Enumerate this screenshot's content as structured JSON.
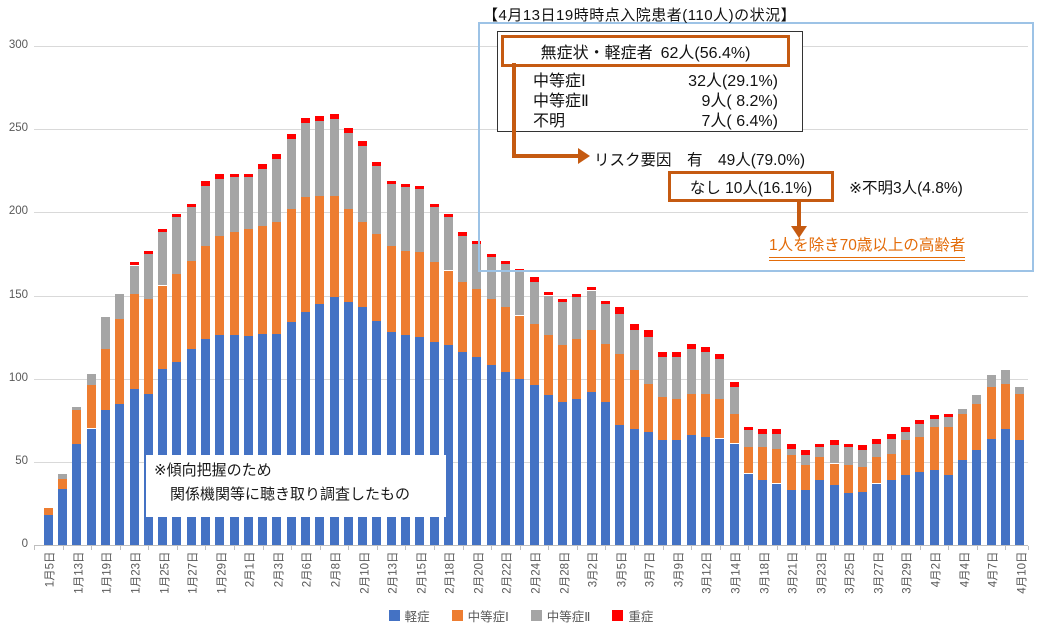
{
  "title": "【4月13日19時時点入院患者(110人)の状況】",
  "note": {
    "line1": "※傾向把握のため",
    "line2": "関係機関等に聴き取り調査したもの"
  },
  "annotation": {
    "row1_label": "無症状・軽症者",
    "row1_value": "62人(56.4%)",
    "rows": [
      {
        "label": "中等症Ⅰ",
        "value": "32人(29.1%)"
      },
      {
        "label": "中等症Ⅱ",
        "value": "9人( 8.2%)"
      },
      {
        "label": "不明",
        "value": "7人( 6.4%)"
      }
    ],
    "risk_line": "リスク要因　有　49人(79.0%)",
    "risk_none": "なし 10人(16.1%)",
    "risk_unknown": "※不明3人(4.8%)",
    "elderly_note": "1人を除き70歳以上の高齢者",
    "accent_color": "#c55a11",
    "elderly_color": "#e36c0a",
    "outer_border_color": "#9dc3e6"
  },
  "legend": [
    {
      "label": "軽症",
      "color": "#4472C4"
    },
    {
      "label": "中等症Ⅰ",
      "color": "#ED7D31"
    },
    {
      "label": "中等症Ⅱ",
      "color": "#A5A5A5"
    },
    {
      "label": "重症",
      "color": "#FF0000"
    }
  ],
  "chart_data": {
    "type": "bar",
    "stacked": true,
    "title": "【4月13日19時時点入院患者(110人)の状況】",
    "xlabel": "",
    "ylabel": "",
    "ylim": [
      0,
      300
    ],
    "y_ticks": [
      0,
      50,
      100,
      150,
      200,
      250,
      300
    ],
    "grid": true,
    "legend_position": "bottom",
    "x_tick_labels": [
      "1月5日",
      "1月13日",
      "1月19日",
      "1月23日",
      "1月25日",
      "1月27日",
      "1月29日",
      "2月1日",
      "2月3日",
      "2月6日",
      "2月8日",
      "2月10日",
      "2月13日",
      "2月15日",
      "2月18日",
      "2月20日",
      "2月22日",
      "2月24日",
      "2月28日",
      "3月2日",
      "3月5日",
      "3月7日",
      "3月9日",
      "3月12日",
      "3月14日",
      "3月18日",
      "3月21日",
      "3月23日",
      "3月25日",
      "3月27日",
      "3月29日",
      "4月2日",
      "4月4日",
      "4月7日",
      "4月10日"
    ],
    "x_tick_every_other_bar": true,
    "n_bars": 69,
    "series": [
      {
        "name": "軽症",
        "color": "#4472C4",
        "values": [
          18,
          34,
          61,
          70,
          81,
          85,
          94,
          91,
          106,
          110,
          118,
          124,
          126,
          126,
          126,
          127,
          127,
          134,
          140,
          145,
          149,
          146,
          143,
          135,
          128,
          126,
          125,
          122,
          120,
          116,
          113,
          108,
          104,
          100,
          96,
          90,
          86,
          88,
          92,
          86,
          72,
          70,
          68,
          63,
          63,
          66,
          65,
          64,
          61,
          43,
          39,
          37,
          33,
          33,
          39,
          36,
          31,
          32,
          37,
          39,
          42,
          44,
          45,
          42,
          51,
          57,
          64,
          70,
          63
        ]
      },
      {
        "name": "中等症Ⅰ",
        "color": "#ED7D31",
        "values": [
          4,
          6,
          20,
          26,
          37,
          51,
          57,
          57,
          50,
          53,
          53,
          56,
          60,
          62,
          64,
          65,
          67,
          68,
          69,
          65,
          61,
          56,
          51,
          52,
          52,
          51,
          51,
          48,
          45,
          42,
          41,
          40,
          39,
          38,
          37,
          36,
          34,
          36,
          37,
          35,
          43,
          35,
          29,
          26,
          25,
          25,
          26,
          24,
          18,
          16,
          20,
          21,
          21,
          15,
          14,
          13,
          17,
          15,
          16,
          16,
          21,
          21,
          26,
          29,
          28,
          28,
          31,
          27,
          28
        ]
      },
      {
        "name": "中等症Ⅱ",
        "color": "#A5A5A5",
        "values": [
          0,
          3,
          2,
          7,
          19,
          15,
          17,
          27,
          32,
          34,
          32,
          36,
          34,
          33,
          31,
          34,
          38,
          42,
          45,
          45,
          46,
          46,
          46,
          41,
          37,
          38,
          38,
          33,
          32,
          28,
          27,
          25,
          26,
          26,
          25,
          24,
          26,
          25,
          24,
          24,
          24,
          24,
          28,
          24,
          25,
          27,
          25,
          24,
          16,
          10,
          8,
          9,
          4,
          6,
          6,
          11,
          11,
          10,
          8,
          9,
          5,
          8,
          5,
          6,
          3,
          5,
          7,
          8,
          4
        ]
      },
      {
        "name": "重症",
        "color": "#FF0000",
        "values": [
          0,
          0,
          0,
          0,
          0,
          0,
          2,
          2,
          2,
          2,
          2,
          3,
          3,
          2,
          2,
          3,
          3,
          3,
          3,
          3,
          3,
          3,
          3,
          2,
          2,
          2,
          2,
          2,
          2,
          2,
          2,
          2,
          2,
          2,
          3,
          2,
          2,
          2,
          2,
          2,
          4,
          4,
          4,
          3,
          3,
          3,
          3,
          3,
          3,
          2,
          3,
          3,
          3,
          3,
          2,
          3,
          2,
          3,
          3,
          3,
          3,
          2,
          2,
          2,
          0,
          0,
          0,
          0,
          0
        ]
      }
    ]
  }
}
